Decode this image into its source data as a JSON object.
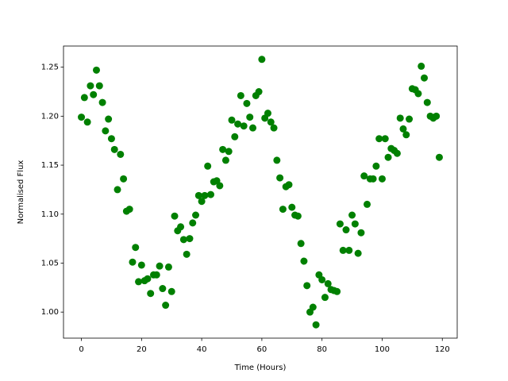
{
  "chart_data": {
    "type": "scatter",
    "xlabel": "Time (Hours)",
    "ylabel": "Normalised Flux",
    "color": "#008000",
    "grid": false,
    "x": [
      0,
      1,
      2,
      3,
      4,
      5,
      6,
      7,
      8,
      9,
      10,
      11,
      12,
      13,
      14,
      15,
      16,
      17,
      18,
      19,
      20,
      21,
      22,
      23,
      24,
      25,
      26,
      27,
      28,
      29,
      30,
      31,
      32,
      33,
      34,
      35,
      36,
      37,
      38,
      39,
      40,
      41,
      42,
      43,
      44,
      45,
      46,
      47,
      48,
      49,
      50,
      51,
      52,
      53,
      54,
      55,
      56,
      57,
      58,
      59,
      60,
      61,
      62,
      63,
      64,
      65,
      66,
      67,
      68,
      69,
      70,
      71,
      72,
      73,
      74,
      75,
      76,
      77,
      78,
      79,
      80,
      81,
      82,
      83,
      84,
      85,
      86,
      87,
      88,
      89,
      90,
      91,
      92,
      93,
      94,
      95,
      96,
      97,
      98,
      99,
      100,
      101,
      102,
      103,
      104,
      105,
      106,
      107,
      108,
      109,
      110,
      111,
      112,
      113,
      114,
      115,
      116,
      117,
      118,
      119
    ],
    "values": [
      1.199,
      1.219,
      1.194,
      1.231,
      1.222,
      1.247,
      1.231,
      1.214,
      1.185,
      1.197,
      1.177,
      1.166,
      1.125,
      1.161,
      1.136,
      1.103,
      1.105,
      1.051,
      1.066,
      1.031,
      1.048,
      1.032,
      1.034,
      1.019,
      1.038,
      1.038,
      1.047,
      1.024,
      1.007,
      1.046,
      1.021,
      1.098,
      1.083,
      1.087,
      1.074,
      1.059,
      1.075,
      1.091,
      1.099,
      1.119,
      1.113,
      1.119,
      1.149,
      1.12,
      1.133,
      1.134,
      1.129,
      1.166,
      1.155,
      1.164,
      1.196,
      1.179,
      1.192,
      1.221,
      1.19,
      1.213,
      1.199,
      1.188,
      1.221,
      1.225,
      1.258,
      1.198,
      1.203,
      1.194,
      1.188,
      1.155,
      1.137,
      1.105,
      1.128,
      1.13,
      1.107,
      1.099,
      1.098,
      1.07,
      1.052,
      1.027,
      1.0,
      1.005,
      0.987,
      1.038,
      1.033,
      1.015,
      1.029,
      1.023,
      1.022,
      1.021,
      1.09,
      1.063,
      1.084,
      1.063,
      1.099,
      1.09,
      1.06,
      1.081,
      1.139,
      1.11,
      1.136,
      1.136,
      1.149,
      1.177,
      1.136,
      1.177,
      1.158,
      1.167,
      1.165,
      1.162,
      1.198,
      1.187,
      1.181,
      1.197,
      1.228,
      1.227,
      1.223,
      1.251,
      1.239,
      1.214,
      1.2,
      1.198,
      1.2,
      1.158
    ],
    "xlim": [
      -5.95,
      124.95
    ],
    "xticks": [
      0,
      20,
      40,
      60,
      80,
      100,
      120
    ],
    "ylim": [
      0.9734,
      1.2716
    ],
    "yticks": [
      {
        "value": 1,
        "label": "1.00"
      },
      1.05,
      {
        "value": 1.1,
        "label": "1.10"
      },
      1.15,
      {
        "value": 1.2,
        "label": "1.20"
      },
      1.25
    ]
  }
}
